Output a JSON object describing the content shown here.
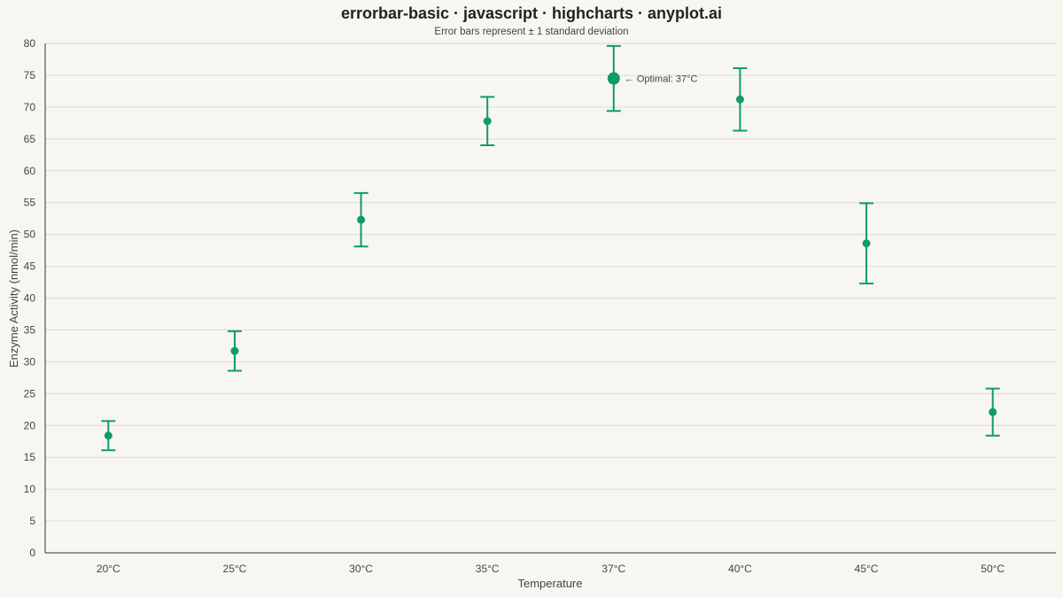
{
  "title": "errorbar-basic · javascript · highcharts · anyplot.ai",
  "subtitle": "Error bars represent ± 1 standard deviation",
  "colors": {
    "background": "#f8f6f0",
    "series": "#0d9b6e",
    "grid": "#dcdad2",
    "axis": "#333333",
    "text": "#444444"
  },
  "chart_data": {
    "type": "scatter",
    "title": "errorbar-basic · javascript · highcharts · anyplot.ai",
    "subtitle": "Error bars represent ± 1 standard deviation",
    "xlabel": "Temperature",
    "ylabel": "Enzyme Activity (nmol/min)",
    "categories": [
      "20°C",
      "25°C",
      "30°C",
      "35°C",
      "37°C",
      "40°C",
      "45°C",
      "50°C"
    ],
    "values": [
      18.4,
      31.7,
      52.3,
      67.8,
      74.5,
      71.2,
      48.6,
      22.1
    ],
    "error_low": [
      16.1,
      28.6,
      48.1,
      64.0,
      69.4,
      66.3,
      42.3,
      18.4
    ],
    "error_high": [
      20.7,
      34.8,
      56.5,
      71.6,
      79.6,
      76.1,
      54.9,
      25.8
    ],
    "highlight_index": 4,
    "ylim": [
      0,
      80
    ],
    "yticks": [
      0,
      5,
      10,
      15,
      20,
      25,
      30,
      35,
      40,
      45,
      50,
      55,
      60,
      65,
      70,
      75,
      80
    ],
    "grid": true,
    "legend": "none",
    "annotations": [
      {
        "category": "37°C",
        "text": "← Optimal: 37°C"
      }
    ]
  }
}
